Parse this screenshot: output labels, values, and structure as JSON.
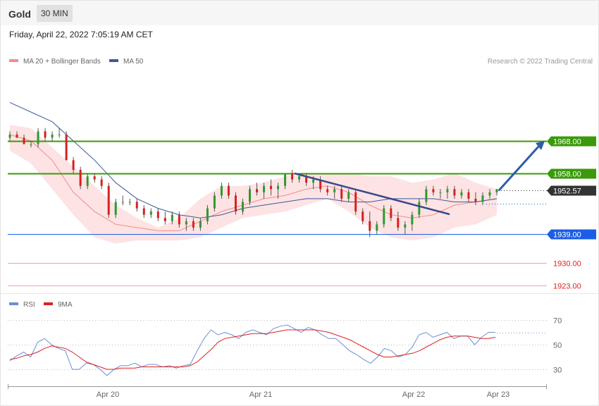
{
  "header": {
    "instrument": "Gold",
    "timeframe": "30 MIN",
    "timestamp": "Friday, April 22, 2022 7:05:19 AM CET",
    "credit": "Research © 2022 Trading Central"
  },
  "legend": {
    "ma20": {
      "label": "MA 20 + Bollinger Bands",
      "color": "#f28b8b"
    },
    "ma50": {
      "label": "MA 50",
      "color": "#3a5a9a"
    }
  },
  "rsi_legend": {
    "rsi": {
      "label": "RSI",
      "color": "#6b8ed6"
    },
    "ma9": {
      "label": "9MA",
      "color": "#e02020"
    }
  },
  "levels": [
    {
      "value": 1968.0,
      "label": "1968.00",
      "type": "resistance",
      "color": "#3a9a0a"
    },
    {
      "value": 1958.0,
      "label": "1958.00",
      "type": "resistance",
      "color": "#3a9a0a"
    },
    {
      "value": 1952.57,
      "label": "1952.57",
      "type": "last_price",
      "color": "#333333"
    },
    {
      "value": 1939.0,
      "label": "1939.00",
      "type": "pivot",
      "color": "#1a5ee8"
    },
    {
      "value": 1930.0,
      "label": "1930.00",
      "type": "support",
      "color": "#e02020"
    },
    {
      "value": 1923.0,
      "label": "1923.00",
      "type": "support",
      "color": "#e02020"
    }
  ],
  "chart_data": [
    {
      "type": "candlestick",
      "x_labels": [
        "Apr 20",
        "Apr 21",
        "Apr 22",
        "Apr 23"
      ],
      "bollinger_upper": [
        1973,
        1972,
        1966,
        1960,
        1954,
        1948,
        1944,
        1941,
        1944,
        1950,
        1954,
        1954,
        1955,
        1957,
        1958,
        1958,
        1958,
        1957,
        1957,
        1955,
        1956,
        1958,
        1955,
        1953
      ],
      "bollinger_lower": [
        1965,
        1961,
        1953,
        1945,
        1938,
        1936,
        1937,
        1937,
        1937,
        1938,
        1941,
        1944,
        1945,
        1946,
        1948,
        1950,
        1946,
        1941,
        1938,
        1937,
        1938,
        1941,
        1942,
        1945
      ],
      "ma20": [
        1970,
        1968,
        1962,
        1952,
        1946,
        1942,
        1941,
        1940,
        1940,
        1943,
        1946,
        1948,
        1950,
        1951,
        1953,
        1954,
        1952,
        1948,
        1945,
        1944,
        1945,
        1948,
        1949,
        1950
      ],
      "ma50": [
        1980,
        1977,
        1974,
        1968,
        1962,
        1955,
        1950,
        1947,
        1945,
        1944,
        1945,
        1947,
        1948,
        1949,
        1950,
        1950,
        1949,
        1949,
        1950,
        1950,
        1950,
        1949,
        1949,
        1950
      ],
      "candles": [
        [
          1969,
          1971,
          1968,
          1970
        ],
        [
          1970,
          1971,
          1969,
          1969
        ],
        [
          1969,
          1970,
          1967,
          1967
        ],
        [
          1967,
          1968,
          1966,
          1967
        ],
        [
          1967,
          1972,
          1966,
          1971
        ],
        [
          1971,
          1972,
          1968,
          1969
        ],
        [
          1969,
          1971,
          1968,
          1970
        ],
        [
          1970,
          1972,
          1969,
          1970
        ],
        [
          1970,
          1971,
          1962,
          1962
        ],
        [
          1962,
          1963,
          1958,
          1959
        ],
        [
          1959,
          1960,
          1953,
          1954
        ],
        [
          1954,
          1958,
          1953,
          1957
        ],
        [
          1957,
          1958,
          1955,
          1956
        ],
        [
          1956,
          1957,
          1953,
          1954
        ],
        [
          1954,
          1955,
          1944,
          1945
        ],
        [
          1945,
          1950,
          1944,
          1949
        ],
        [
          1949,
          1951,
          1948,
          1949
        ],
        [
          1949,
          1950,
          1948,
          1949
        ],
        [
          1949,
          1950,
          1946,
          1947
        ],
        [
          1947,
          1948,
          1944,
          1945
        ],
        [
          1945,
          1947,
          1944,
          1946
        ],
        [
          1946,
          1947,
          1943,
          1944
        ],
        [
          1944,
          1946,
          1942,
          1943
        ],
        [
          1943,
          1946,
          1942,
          1945
        ],
        [
          1945,
          1946,
          1941,
          1942
        ],
        [
          1942,
          1944,
          1940,
          1943
        ],
        [
          1943,
          1944,
          1940,
          1941
        ],
        [
          1941,
          1944,
          1940,
          1943
        ],
        [
          1943,
          1948,
          1942,
          1947
        ],
        [
          1947,
          1952,
          1946,
          1951
        ],
        [
          1951,
          1955,
          1950,
          1954
        ],
        [
          1954,
          1955,
          1950,
          1951
        ],
        [
          1951,
          1952,
          1945,
          1946
        ],
        [
          1946,
          1950,
          1945,
          1949
        ],
        [
          1949,
          1954,
          1948,
          1953
        ],
        [
          1953,
          1955,
          1951,
          1952
        ],
        [
          1952,
          1955,
          1950,
          1954
        ],
        [
          1954,
          1956,
          1951,
          1953
        ],
        [
          1953,
          1955,
          1950,
          1954
        ],
        [
          1954,
          1958,
          1953,
          1958
        ],
        [
          1958,
          1959,
          1955,
          1956
        ],
        [
          1956,
          1958,
          1955,
          1957
        ],
        [
          1957,
          1958,
          1954,
          1955
        ],
        [
          1955,
          1957,
          1953,
          1956
        ],
        [
          1956,
          1957,
          1952,
          1953
        ],
        [
          1953,
          1954,
          1951,
          1952
        ],
        [
          1952,
          1954,
          1950,
          1953
        ],
        [
          1953,
          1954,
          1949,
          1950
        ],
        [
          1950,
          1953,
          1949,
          1952
        ],
        [
          1952,
          1953,
          1945,
          1946
        ],
        [
          1946,
          1947,
          1942,
          1943
        ],
        [
          1943,
          1946,
          1938,
          1940
        ],
        [
          1940,
          1943,
          1939,
          1942
        ],
        [
          1942,
          1948,
          1941,
          1947
        ],
        [
          1947,
          1948,
          1943,
          1944
        ],
        [
          1944,
          1946,
          1940,
          1941
        ],
        [
          1941,
          1943,
          1939,
          1942
        ],
        [
          1942,
          1946,
          1940,
          1945
        ],
        [
          1945,
          1950,
          1944,
          1949
        ],
        [
          1949,
          1954,
          1948,
          1953
        ],
        [
          1953,
          1954,
          1951,
          1952
        ],
        [
          1952,
          1953,
          1950,
          1952
        ],
        [
          1952,
          1954,
          1950,
          1953
        ],
        [
          1953,
          1954,
          1950,
          1951
        ],
        [
          1951,
          1953,
          1950,
          1952
        ],
        [
          1952,
          1953,
          1949,
          1950
        ],
        [
          1950,
          1952,
          1948,
          1949
        ],
        [
          1949,
          1952,
          1948,
          1951
        ],
        [
          1951,
          1953,
          1950,
          1952
        ],
        [
          1952,
          1953,
          1951,
          1953
        ]
      ],
      "trendline": {
        "from": [
          1,
          1958
        ],
        "to": [
          3,
          1948
        ]
      },
      "arrow": {
        "from": [
          1952.6
        ],
        "to": [
          1967.5
        ]
      },
      "ylim": [
        1918,
        1985
      ]
    },
    {
      "type": "line",
      "title": "RSI",
      "series": [
        {
          "name": "RSI",
          "values": [
            37,
            41,
            44,
            40,
            52,
            55,
            50,
            47,
            45,
            30,
            30,
            35,
            34,
            30,
            25,
            30,
            33,
            33,
            35,
            32,
            34,
            34,
            32,
            33,
            31,
            33,
            34,
            45,
            55,
            62,
            58,
            60,
            58,
            55,
            60,
            62,
            60,
            58,
            63,
            65,
            66,
            63,
            60,
            64,
            62,
            58,
            55,
            55,
            50,
            45,
            42,
            38,
            35,
            40,
            47,
            45,
            40,
            42,
            48,
            58,
            60,
            56,
            58,
            60,
            55,
            57,
            57,
            50,
            56,
            60,
            60
          ]
        },
        {
          "name": "9MA",
          "values": [
            38,
            39,
            41,
            42,
            44,
            47,
            49,
            48,
            47,
            44,
            40,
            36,
            34,
            32,
            30,
            30,
            31,
            31,
            31,
            32,
            32,
            32,
            32,
            32,
            32,
            32,
            33,
            36,
            41,
            46,
            52,
            55,
            56,
            57,
            58,
            59,
            59,
            59,
            60,
            61,
            62,
            62,
            62,
            62,
            62,
            61,
            60,
            58,
            56,
            54,
            51,
            48,
            45,
            42,
            40,
            40,
            41,
            42,
            43,
            45,
            48,
            51,
            54,
            56,
            57,
            57,
            57,
            56,
            55,
            55,
            56
          ]
        }
      ],
      "y_ticks": [
        30,
        50,
        70
      ],
      "ylim": [
        18,
        78
      ]
    }
  ]
}
